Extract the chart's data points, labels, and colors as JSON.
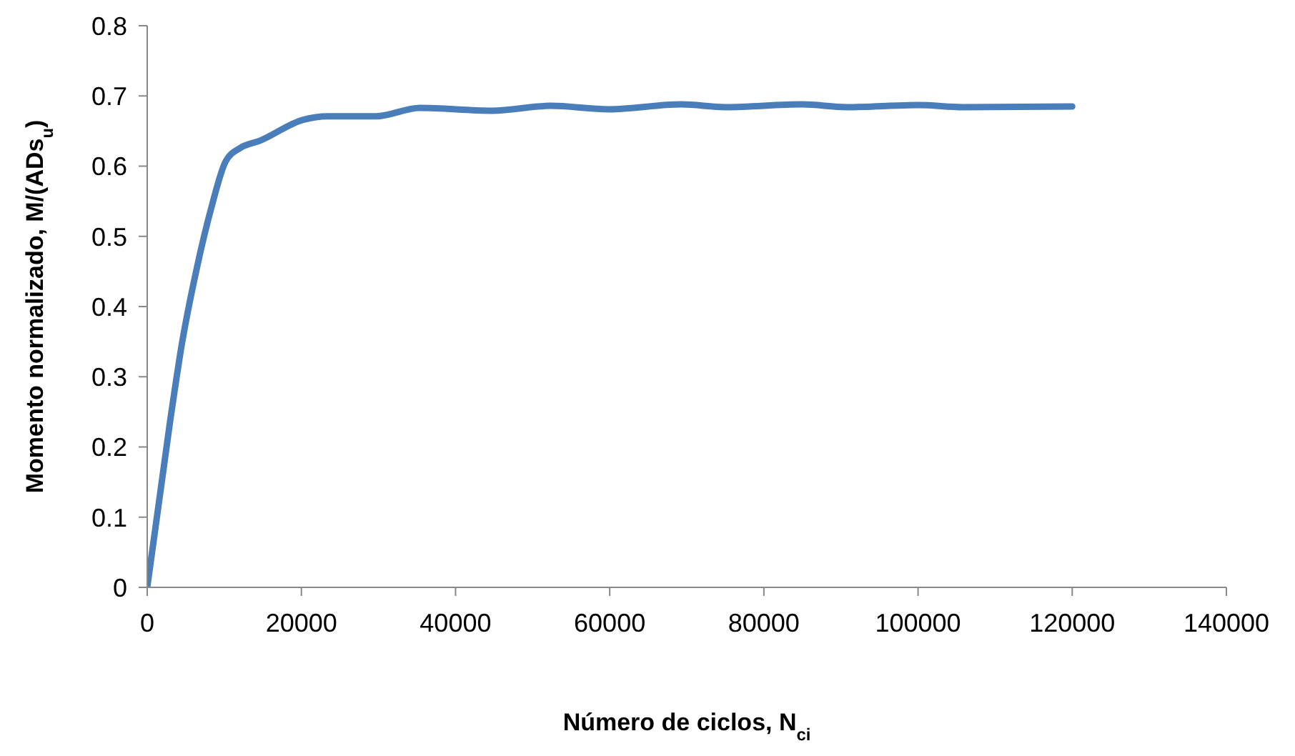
{
  "chart_data": {
    "type": "line",
    "xlabel": "Número de ciclos,  N$_{ci}$",
    "ylabel": "Momento normalizado,  M/(ADs$_{u}$)",
    "x": [
      0,
      2960,
      4530,
      6420,
      8300,
      10190,
      12080,
      14580,
      20240,
      23400,
      29680,
      35340,
      44770,
      52320,
      59900,
      69300,
      75000,
      85000,
      90700,
      100100,
      105800,
      120000
    ],
    "series": [
      {
        "color": "#4a7ebb",
        "values": [
          0,
          0.236,
          0.349,
          0.454,
          0.54,
          0.607,
          0.626,
          0.636,
          0.666,
          0.671,
          0.671,
          0.683,
          0.679,
          0.686,
          0.681,
          0.688,
          0.684,
          0.688,
          0.684,
          0.687,
          0.684,
          0.685
        ]
      }
    ],
    "xlim": [
      0,
      140000
    ],
    "xticks": [
      0,
      20000,
      40000,
      60000,
      80000,
      100000,
      120000,
      140000
    ],
    "ylim": [
      0,
      0.8
    ],
    "yticks": [
      0,
      0.1,
      0.2,
      0.3,
      0.4,
      0.5,
      0.6,
      0.7,
      0.8
    ],
    "grid": false,
    "marker": "none",
    "line_style": "solid"
  }
}
